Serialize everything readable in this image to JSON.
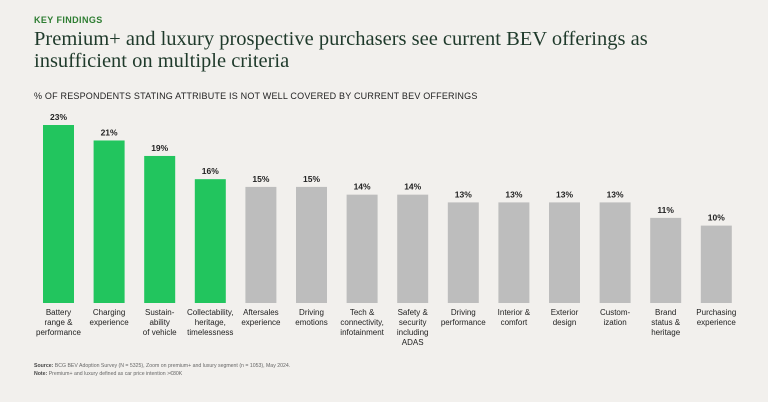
{
  "header": {
    "kicker": "KEY FINDINGS",
    "title_line1": "Premium+ and luxury prospective purchasers see current BEV offerings as",
    "title_line2": "insufficient on multiple criteria"
  },
  "colors": {
    "highlight": "#22c55e",
    "default": "#bdbdbd",
    "kicker": "#2e7d32"
  },
  "chart_data": {
    "type": "bar",
    "title": "% OF RESPONDENTS STATING ATTRIBUTE IS NOT WELL COVERED BY CURRENT BEV OFFERINGS",
    "categories": [
      [
        "Battery",
        "range &",
        "performance"
      ],
      [
        "Charging",
        "experience"
      ],
      [
        "Sustain-",
        "ability",
        "of vehicle"
      ],
      [
        "Collectability,",
        "heritage,",
        "timelessness"
      ],
      [
        "Aftersales",
        "experience"
      ],
      [
        "Driving",
        "emotions"
      ],
      [
        "Tech &",
        "connectivity,",
        "infotainment"
      ],
      [
        "Safety &",
        "security",
        "including",
        "ADAS"
      ],
      [
        "Driving",
        "performance"
      ],
      [
        "Interior &",
        "comfort"
      ],
      [
        "Exterior",
        "design"
      ],
      [
        "Custom-",
        "ization"
      ],
      [
        "Brand",
        "status &",
        "heritage"
      ],
      [
        "Purchasing",
        "experience"
      ]
    ],
    "values": [
      23,
      21,
      19,
      16,
      15,
      15,
      14,
      14,
      13,
      13,
      13,
      13,
      11,
      10
    ],
    "value_labels": [
      "23%",
      "21%",
      "19%",
      "16%",
      "15%",
      "15%",
      "14%",
      "14%",
      "13%",
      "13%",
      "13%",
      "13%",
      "11%",
      "10%"
    ],
    "highlighted": [
      true,
      true,
      true,
      true,
      false,
      false,
      false,
      false,
      false,
      false,
      false,
      false,
      false,
      false
    ],
    "ylim": [
      0,
      23
    ],
    "grid": false,
    "legend": "none"
  },
  "footer": {
    "source_label": "Source:",
    "source_text": "BCG BEV Adoption Survey (N = 5325), Zoom on premium+ and luxury segment (n = 1053), May 2024.",
    "note_label": "Note:",
    "note_text": "Premium+ and luxury defined as car price intention >€80K"
  }
}
